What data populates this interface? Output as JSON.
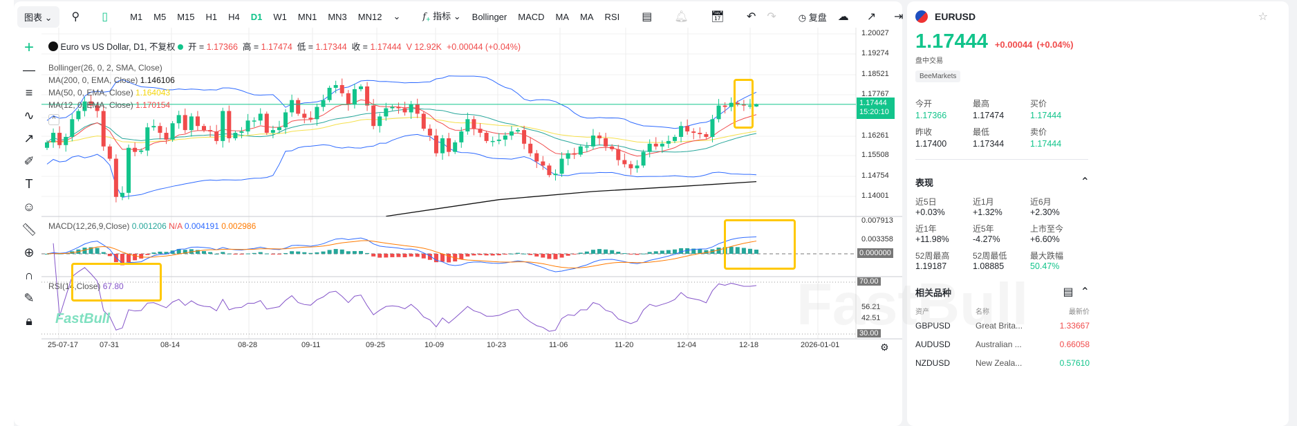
{
  "toolbar": {
    "chart_menu": "图表",
    "timeframes": [
      "M1",
      "M5",
      "M15",
      "H1",
      "H4",
      "D1",
      "W1",
      "MN1",
      "MN3",
      "MN12"
    ],
    "active_timeframe": "D1",
    "indicators": "指标",
    "quick_indicators": [
      "Bollinger",
      "MACD",
      "MA",
      "MA",
      "RSI"
    ],
    "replay": "复盘"
  },
  "legend": {
    "title": "Euro vs US Dollar, D1, 不复权",
    "open_label": "开 =",
    "open": "1.17366",
    "high_label": "高 =",
    "high": "1.17474",
    "low_label": "低 =",
    "low": "1.17344",
    "close_label": "收 =",
    "close": "1.17444",
    "volume": "V 12.92K",
    "change": "+0.00044 (+0.04%)",
    "bollinger": "Bollinger(26, 0, 2, SMA, Close)",
    "ma200": "MA(200, 0, EMA, Close)",
    "ma200_val": "1.146106",
    "ma50": "MA(50, 0, EMA, Close)",
    "ma50_val": "1.164043",
    "ma12": "MA(12, 0, EMA, Close)",
    "ma12_val": "1.170154",
    "macd": "MACD(12,26,9,Close)",
    "macd_hist": "0.001206",
    "macd_na": "N/A",
    "macd_line": "0.004191",
    "macd_signal": "0.002986",
    "rsi": "RSI(14,Close)",
    "rsi_val": "67.80"
  },
  "price_axis": [
    "1.20027",
    "1.19274",
    "1.18521",
    "1.17767",
    "1.16261",
    "1.15508",
    "1.14754",
    "1.14001"
  ],
  "current_price": {
    "price": "1.17444",
    "countdown": "15:20:10"
  },
  "macd_axis": [
    "0.007913",
    "0.003358",
    "0.000000"
  ],
  "rsi_axis": [
    "70.00",
    "56.21",
    "42.51",
    "30.00"
  ],
  "date_axis": [
    "25-07-17",
    "07-31",
    "08-14",
    "08-28",
    "09-11",
    "09-25",
    "10-09",
    "10-23",
    "11-06",
    "11-20",
    "12-04",
    "12-18",
    "2026-01-01"
  ],
  "watermark": "FastBull",
  "colors": {
    "up": "#12c48b",
    "down": "#f04b4b",
    "accent": "#12c48b",
    "highlight": "#ffc800"
  },
  "chart_data": {
    "type": "candlestick",
    "first_date": "2025-07-15",
    "closes": [
      1.1605,
      1.164,
      1.1595,
      1.1625,
      1.169,
      1.172,
      1.1755,
      1.174,
      1.172,
      1.159,
      1.1545,
      1.1405,
      1.142,
      1.1585,
      1.157,
      1.1575,
      1.166,
      1.1665,
      1.164,
      1.1615,
      1.1675,
      1.1705,
      1.165,
      1.17,
      1.1665,
      1.165,
      1.1645,
      1.161,
      1.172,
      1.162,
      1.164,
      1.1645,
      1.1685,
      1.1685,
      1.171,
      1.164,
      1.165,
      1.166,
      1.1715,
      1.176,
      1.171,
      1.1695,
      1.169,
      1.1735,
      1.176,
      1.1805,
      1.1815,
      1.1785,
      1.1745,
      1.18,
      1.181,
      1.174,
      1.1665,
      1.17,
      1.173,
      1.1735,
      1.173,
      1.1715,
      1.1745,
      1.171,
      1.1655,
      1.163,
      1.1565,
      1.162,
      1.157,
      1.1605,
      1.1645,
      1.169,
      1.1655,
      1.164,
      1.161,
      1.161,
      1.1615,
      1.163,
      1.1645,
      1.165,
      1.16,
      1.1565,
      1.1535,
      1.152,
      1.1485,
      1.149,
      1.1545,
      1.1565,
      1.156,
      1.159,
      1.159,
      1.163,
      1.162,
      1.159,
      1.158,
      1.154,
      1.1525,
      1.151,
      1.152,
      1.157,
      1.16,
      1.159,
      1.16,
      1.161,
      1.1625,
      1.1665,
      1.1645,
      1.164,
      1.1635,
      1.1625,
      1.169,
      1.174,
      1.1735,
      1.175,
      1.1745,
      1.174,
      1.174,
      1.17444
    ],
    "last_candle": {
      "open": 1.17366,
      "high": 1.17474,
      "low": 1.17344,
      "close": 1.17444
    },
    "ema200": [
      {
        "date": "2025-09-29",
        "value": 1.1334
      },
      {
        "date": "2025-10-23",
        "value": 1.1395
      },
      {
        "date": "2025-11-13",
        "value": 1.1425
      },
      {
        "date": "2025-12-04",
        "value": 1.1445
      },
      {
        "date": "2025-12-19",
        "value": 1.1461
      }
    ],
    "ylim": [
      1.134,
      1.2003
    ],
    "indicators": [
      "Bollinger(26,2)",
      "EMA12",
      "EMA50",
      "EMA200",
      "MACD(12,26,9)",
      "RSI(14)"
    ]
  },
  "panel": {
    "symbol": "EURUSD",
    "price": "1.17444",
    "change": "+0.00044",
    "change_pct": "(+0.04%)",
    "status": "盘中交易",
    "broker": "BeeMarkets",
    "stats": [
      {
        "label": "今开",
        "value": "1.17366",
        "color": "green"
      },
      {
        "label": "最高",
        "value": "1.17474",
        "color": ""
      },
      {
        "label": "买价",
        "value": "1.17444",
        "color": "green"
      },
      {
        "label": "昨收",
        "value": "1.17400",
        "color": ""
      },
      {
        "label": "最低",
        "value": "1.17344",
        "color": ""
      },
      {
        "label": "卖价",
        "value": "1.17444",
        "color": "green"
      }
    ],
    "perf_title": "表现",
    "perf": [
      {
        "label": "近5日",
        "value": "+0.03%",
        "color": ""
      },
      {
        "label": "近1月",
        "value": "+1.32%",
        "color": ""
      },
      {
        "label": "近6月",
        "value": "+2.30%",
        "color": ""
      },
      {
        "label": "近1年",
        "value": "+11.98%",
        "color": ""
      },
      {
        "label": "近5年",
        "value": "-4.27%",
        "color": ""
      },
      {
        "label": "上市至今",
        "value": "+6.60%",
        "color": ""
      },
      {
        "label": "52周最高",
        "value": "1.19187",
        "color": ""
      },
      {
        "label": "52周最低",
        "value": "1.08885",
        "color": ""
      },
      {
        "label": "最大跌幅",
        "value": "50.47%",
        "color": "green"
      }
    ],
    "related_title": "相关品种",
    "related_headers": [
      "资产",
      "名称",
      "最新价"
    ],
    "related": [
      {
        "asset": "GBPUSD",
        "name": "Great Brita...",
        "price": "1.33667",
        "color": "red"
      },
      {
        "asset": "AUDUSD",
        "name": "Australian ...",
        "price": "0.66058",
        "color": "red"
      },
      {
        "asset": "NZDUSD",
        "name": "New Zeala...",
        "price": "0.57610",
        "color": "green"
      }
    ]
  }
}
